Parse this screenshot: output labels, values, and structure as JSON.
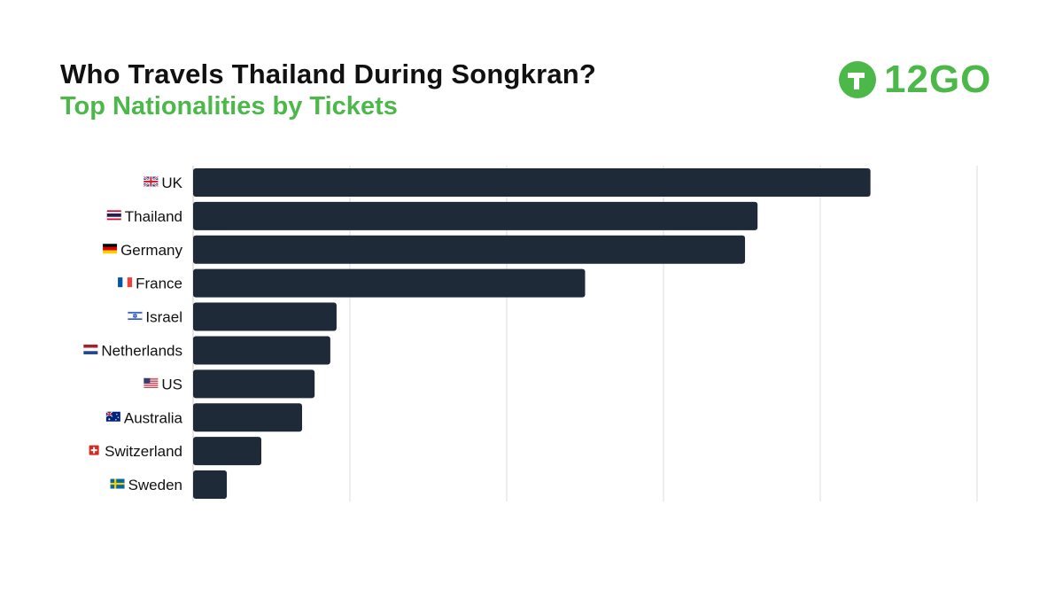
{
  "header": {
    "title": "Who Travels Thailand During Songkran?",
    "subtitle": "Top Nationalities by Tickets"
  },
  "logo": {
    "text": "12GO",
    "color": "#4db84a"
  },
  "colors": {
    "bar": "#1f2a38",
    "grid": "#dddddd",
    "accent": "#4db84a"
  },
  "chart_data": {
    "type": "bar",
    "orientation": "horizontal",
    "title": "Who Travels Thailand During Songkran?",
    "subtitle": "Top Nationalities by Tickets",
    "xlabel": "",
    "ylabel": "",
    "categories": [
      "UK",
      "Thailand",
      "Germany",
      "France",
      "Israel",
      "Netherlands",
      "US",
      "Australia",
      "Switzerland",
      "Sweden"
    ],
    "flags": [
      "uk-flag-icon",
      "thailand-flag-icon",
      "germany-flag-icon",
      "france-flag-icon",
      "israel-flag-icon",
      "netherlands-flag-icon",
      "us-flag-icon",
      "australia-flag-icon",
      "switzerland-flag-icon",
      "sweden-flag-icon"
    ],
    "values": [
      86.4,
      72.0,
      70.4,
      50.0,
      18.3,
      17.5,
      15.5,
      13.9,
      8.7,
      4.3
    ],
    "xlim": [
      0,
      100
    ],
    "grid": true,
    "tick_labels_shown": false
  }
}
